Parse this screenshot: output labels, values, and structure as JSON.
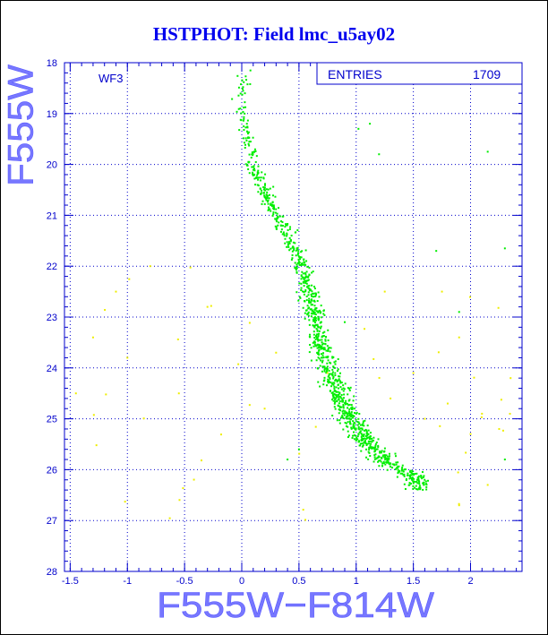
{
  "chart_data": {
    "type": "scatter",
    "title": "HSTPHOT: Field lmc_u5ay02",
    "xlabel": "F555W−F814W",
    "ylabel": "F555W",
    "xlim": [
      -1.55,
      2.45
    ],
    "ylim": [
      28,
      18
    ],
    "y_inverted": true,
    "x_ticks": [
      -1.5,
      -1,
      -0.5,
      0,
      0.5,
      1,
      1.5,
      2
    ],
    "x_tick_labels": [
      "-1.5",
      "-1",
      "-0.5",
      "0",
      "0.5",
      "1",
      "1.5",
      "2"
    ],
    "y_ticks": [
      18,
      19,
      20,
      21,
      22,
      23,
      24,
      25,
      26,
      27,
      28
    ],
    "y_tick_labels": [
      "18",
      "19",
      "20",
      "21",
      "22",
      "23",
      "24",
      "25",
      "26",
      "27",
      "28"
    ],
    "grid": true,
    "grid_style": "dotted",
    "panel_label": "WF3",
    "stats_box": {
      "label": "ENTRIES",
      "value": "1709"
    },
    "main_sequence_color": "#00ee00",
    "field_star_color": "#eeee00",
    "main_sequence": [
      {
        "c": 0.0,
        "m": 18.0
      },
      {
        "c": 0.02,
        "m": 18.5
      },
      {
        "c": 0.0,
        "m": 19.0
      },
      {
        "c": 0.05,
        "m": 19.5
      },
      {
        "c": 0.1,
        "m": 20.0
      },
      {
        "c": 0.18,
        "m": 20.5
      },
      {
        "c": 0.3,
        "m": 21.0
      },
      {
        "c": 0.42,
        "m": 21.5
      },
      {
        "c": 0.52,
        "m": 22.0
      },
      {
        "c": 0.58,
        "m": 22.5
      },
      {
        "c": 0.63,
        "m": 23.0
      },
      {
        "c": 0.68,
        "m": 23.5
      },
      {
        "c": 0.75,
        "m": 24.0
      },
      {
        "c": 0.85,
        "m": 24.5
      },
      {
        "c": 0.95,
        "m": 25.0
      },
      {
        "c": 1.1,
        "m": 25.5
      },
      {
        "c": 1.3,
        "m": 25.9
      },
      {
        "c": 1.55,
        "m": 26.2
      }
    ],
    "scatter_points": [
      {
        "c": -1.3,
        "m": 23.4
      },
      {
        "c": -1.1,
        "m": 22.5
      },
      {
        "c": -1.0,
        "m": 23.8
      },
      {
        "c": -0.8,
        "m": 22.0
      },
      {
        "c": -0.55,
        "m": 24.5
      },
      {
        "c": -0.3,
        "m": 22.8
      },
      {
        "c": 0.2,
        "m": 24.8
      },
      {
        "c": 0.3,
        "m": 23.7
      },
      {
        "c": 1.3,
        "m": 24.6
      },
      {
        "c": 1.6,
        "m": 25.0
      },
      {
        "c": 1.8,
        "m": 24.7
      },
      {
        "c": 2.0,
        "m": 25.3
      },
      {
        "c": 2.25,
        "m": 25.2
      },
      {
        "c": 2.35,
        "m": 24.2
      },
      {
        "c": 1.75,
        "m": 22.5
      },
      {
        "c": 1.25,
        "m": 22.5
      },
      {
        "c": 2.1,
        "m": 24.9
      },
      {
        "c": 1.9,
        "m": 26.7
      },
      {
        "c": 2.15,
        "m": 26.3
      },
      {
        "c": -1.45,
        "m": 24.5
      },
      {
        "c": 0.75,
        "m": 24.1
      },
      {
        "c": 1.5,
        "m": 24.1
      },
      {
        "c": 1.9,
        "m": 23.4
      }
    ],
    "outliers": [
      {
        "c": 1.02,
        "m": 19.3
      },
      {
        "c": 1.12,
        "m": 19.2
      },
      {
        "c": 1.2,
        "m": 19.8
      },
      {
        "c": 2.15,
        "m": 19.75
      },
      {
        "c": 2.3,
        "m": 21.65
      },
      {
        "c": 1.7,
        "m": 21.7
      },
      {
        "c": 1.9,
        "m": 22.9
      },
      {
        "c": 2.3,
        "m": 25.8
      },
      {
        "c": 0.4,
        "m": 25.8
      },
      {
        "c": 0.5,
        "m": 25.6
      },
      {
        "c": 0.9,
        "m": 23.1
      }
    ]
  }
}
